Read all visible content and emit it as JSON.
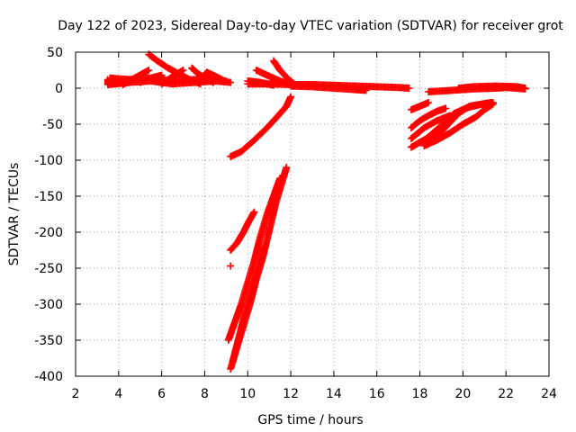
{
  "chart_data": {
    "type": "scatter",
    "title": "Day 122 of 2023, Sidereal Day-to-day VTEC variation (SDTVAR) for receiver grot",
    "xlabel": "GPS time / hours",
    "ylabel": "SDTVAR / TECUs",
    "xlim": [
      2,
      24
    ],
    "ylim": [
      -400,
      50
    ],
    "xticks": [
      2,
      4,
      6,
      8,
      10,
      12,
      14,
      16,
      18,
      20,
      22,
      24
    ],
    "yticks": [
      -400,
      -350,
      -300,
      -250,
      -200,
      -150,
      -100,
      -50,
      0,
      50
    ],
    "xtick_labels": [
      "2",
      "4",
      "6",
      "8",
      "10",
      "12",
      "14",
      "16",
      "18",
      "20",
      "22",
      "24"
    ],
    "ytick_labels": [
      "-400",
      "-350",
      "-300",
      "-250",
      "-200",
      "-150",
      "-100",
      "-50",
      "0",
      "50"
    ],
    "grid": true,
    "marker": "+",
    "color": "#ff0000",
    "series": [
      {
        "name": "band-early",
        "points": [
          [
            3.5,
            12
          ],
          [
            3.5,
            5
          ],
          [
            4.5,
            8
          ],
          [
            5.5,
            10
          ],
          [
            6.5,
            6
          ],
          [
            7.5,
            8
          ],
          [
            8.5,
            10
          ],
          [
            9.2,
            8
          ]
        ]
      },
      {
        "name": "band-early-upper",
        "points": [
          [
            3.6,
            14
          ],
          [
            4.5,
            12
          ],
          [
            5.5,
            14
          ],
          [
            6.5,
            10
          ],
          [
            7.5,
            12
          ],
          [
            8.5,
            12
          ],
          [
            9.0,
            10
          ]
        ]
      },
      {
        "name": "arc-5",
        "points": [
          [
            4.2,
            5
          ],
          [
            4.8,
            15
          ],
          [
            5.4,
            25
          ]
        ]
      },
      {
        "name": "arc-5b",
        "points": [
          [
            5.4,
            47
          ],
          [
            5.8,
            38
          ],
          [
            6.3,
            28
          ],
          [
            6.8,
            20
          ],
          [
            7.3,
            12
          ],
          [
            7.8,
            6
          ]
        ]
      },
      {
        "name": "arc-6",
        "points": [
          [
            5.0,
            8
          ],
          [
            5.6,
            15
          ],
          [
            6.0,
            18
          ]
        ]
      },
      {
        "name": "arc-7",
        "points": [
          [
            6.0,
            6
          ],
          [
            6.6,
            18
          ],
          [
            7.0,
            25
          ]
        ]
      },
      {
        "name": "arc-7b",
        "points": [
          [
            7.4,
            28
          ],
          [
            7.7,
            20
          ],
          [
            8.0,
            14
          ],
          [
            8.4,
            8
          ]
        ]
      },
      {
        "name": "arc-8",
        "points": [
          [
            7.8,
            12
          ],
          [
            8.1,
            22
          ],
          [
            8.4,
            18
          ],
          [
            8.8,
            12
          ]
        ]
      },
      {
        "name": "band-mid",
        "points": [
          [
            10.0,
            6
          ],
          [
            11.0,
            6
          ],
          [
            12.0,
            5
          ],
          [
            13.0,
            5
          ],
          [
            14.0,
            4
          ],
          [
            15.0,
            3
          ],
          [
            16.0,
            2
          ],
          [
            17.0,
            1
          ],
          [
            17.5,
            0
          ]
        ]
      },
      {
        "name": "band-mid-lower",
        "points": [
          [
            12.0,
            3
          ],
          [
            13.0,
            2
          ],
          [
            14.0,
            0
          ],
          [
            15.0,
            -2
          ],
          [
            15.5,
            -3
          ]
        ]
      },
      {
        "name": "arc-10",
        "points": [
          [
            10.4,
            25
          ],
          [
            10.9,
            18
          ],
          [
            11.5,
            10
          ],
          [
            12.0,
            5
          ]
        ]
      },
      {
        "name": "arc-11",
        "points": [
          [
            11.2,
            38
          ],
          [
            11.5,
            25
          ],
          [
            11.9,
            12
          ],
          [
            12.2,
            5
          ]
        ]
      },
      {
        "name": "arc-10c",
        "points": [
          [
            10.0,
            10
          ],
          [
            10.6,
            8
          ],
          [
            11.2,
            4
          ]
        ]
      },
      {
        "name": "band-late",
        "points": [
          [
            18.4,
            -5
          ],
          [
            19.5,
            -3
          ],
          [
            20.5,
            -1
          ],
          [
            21.5,
            0
          ],
          [
            22.0,
            1
          ],
          [
            22.9,
            -1
          ]
        ]
      },
      {
        "name": "band-late-upper",
        "points": [
          [
            19.8,
            0
          ],
          [
            20.5,
            2
          ],
          [
            21.5,
            3
          ],
          [
            22.5,
            2
          ],
          [
            22.9,
            0
          ]
        ]
      },
      {
        "name": "arc-17",
        "points": [
          [
            17.6,
            -30
          ],
          [
            18.0,
            -25
          ],
          [
            18.4,
            -20
          ]
        ]
      },
      {
        "name": "arc-18a",
        "points": [
          [
            17.6,
            -55
          ],
          [
            18.0,
            -45
          ],
          [
            18.4,
            -38
          ],
          [
            18.8,
            -32
          ],
          [
            19.2,
            -28
          ]
        ]
      },
      {
        "name": "arc-18b",
        "points": [
          [
            17.6,
            -70
          ],
          [
            18.2,
            -55
          ],
          [
            18.8,
            -45
          ],
          [
            19.4,
            -38
          ]
        ]
      },
      {
        "name": "arc-18c",
        "points": [
          [
            17.6,
            -82
          ],
          [
            18.3,
            -70
          ],
          [
            19.0,
            -52
          ],
          [
            19.6,
            -35
          ],
          [
            20.2,
            -27
          ],
          [
            20.9,
            -22
          ],
          [
            21.4,
            -20
          ]
        ]
      },
      {
        "name": "arc-18d",
        "points": [
          [
            18.2,
            -80
          ],
          [
            18.8,
            -72
          ],
          [
            19.4,
            -62
          ],
          [
            20.0,
            -50
          ],
          [
            20.6,
            -40
          ],
          [
            21.0,
            -30
          ],
          [
            21.4,
            -22
          ]
        ]
      },
      {
        "name": "arc-18e",
        "points": [
          [
            18.4,
            -75
          ],
          [
            19.0,
            -60
          ],
          [
            19.8,
            -35
          ],
          [
            20.3,
            -25
          ],
          [
            21.3,
            -20
          ]
        ]
      },
      {
        "name": "arc-9-rise",
        "points": [
          [
            9.2,
            -95
          ],
          [
            9.7,
            -88
          ],
          [
            10.2,
            -75
          ],
          [
            10.8,
            -58
          ],
          [
            11.3,
            -42
          ],
          [
            11.8,
            -25
          ],
          [
            12.0,
            -12
          ]
        ]
      },
      {
        "name": "arc-9-upper",
        "points": [
          [
            9.2,
            -225
          ],
          [
            9.5,
            -215
          ],
          [
            9.8,
            -200
          ],
          [
            10.0,
            -188
          ],
          [
            10.3,
            -172
          ]
        ]
      },
      {
        "name": "arc-9-deep",
        "points": [
          [
            9.2,
            -390
          ],
          [
            9.5,
            -360
          ],
          [
            9.8,
            -330
          ],
          [
            10.1,
            -300
          ],
          [
            10.4,
            -265
          ],
          [
            10.7,
            -235
          ],
          [
            10.9,
            -210
          ],
          [
            11.1,
            -185
          ],
          [
            11.3,
            -160
          ],
          [
            11.6,
            -130
          ],
          [
            11.8,
            -110
          ]
        ]
      },
      {
        "name": "arc-9-deep2",
        "points": [
          [
            9.1,
            -350
          ],
          [
            9.4,
            -325
          ],
          [
            9.7,
            -300
          ],
          [
            10.0,
            -270
          ],
          [
            10.3,
            -240
          ],
          [
            10.6,
            -205
          ],
          [
            10.9,
            -175
          ],
          [
            11.2,
            -150
          ],
          [
            11.5,
            -125
          ]
        ]
      },
      {
        "name": "arc-9-deep3",
        "points": [
          [
            9.3,
            -380
          ],
          [
            9.6,
            -345
          ],
          [
            9.9,
            -310
          ],
          [
            10.2,
            -280
          ],
          [
            10.5,
            -250
          ],
          [
            10.8,
            -220
          ]
        ]
      },
      {
        "name": "outlier",
        "points": [
          [
            9.2,
            -247
          ]
        ]
      }
    ]
  }
}
